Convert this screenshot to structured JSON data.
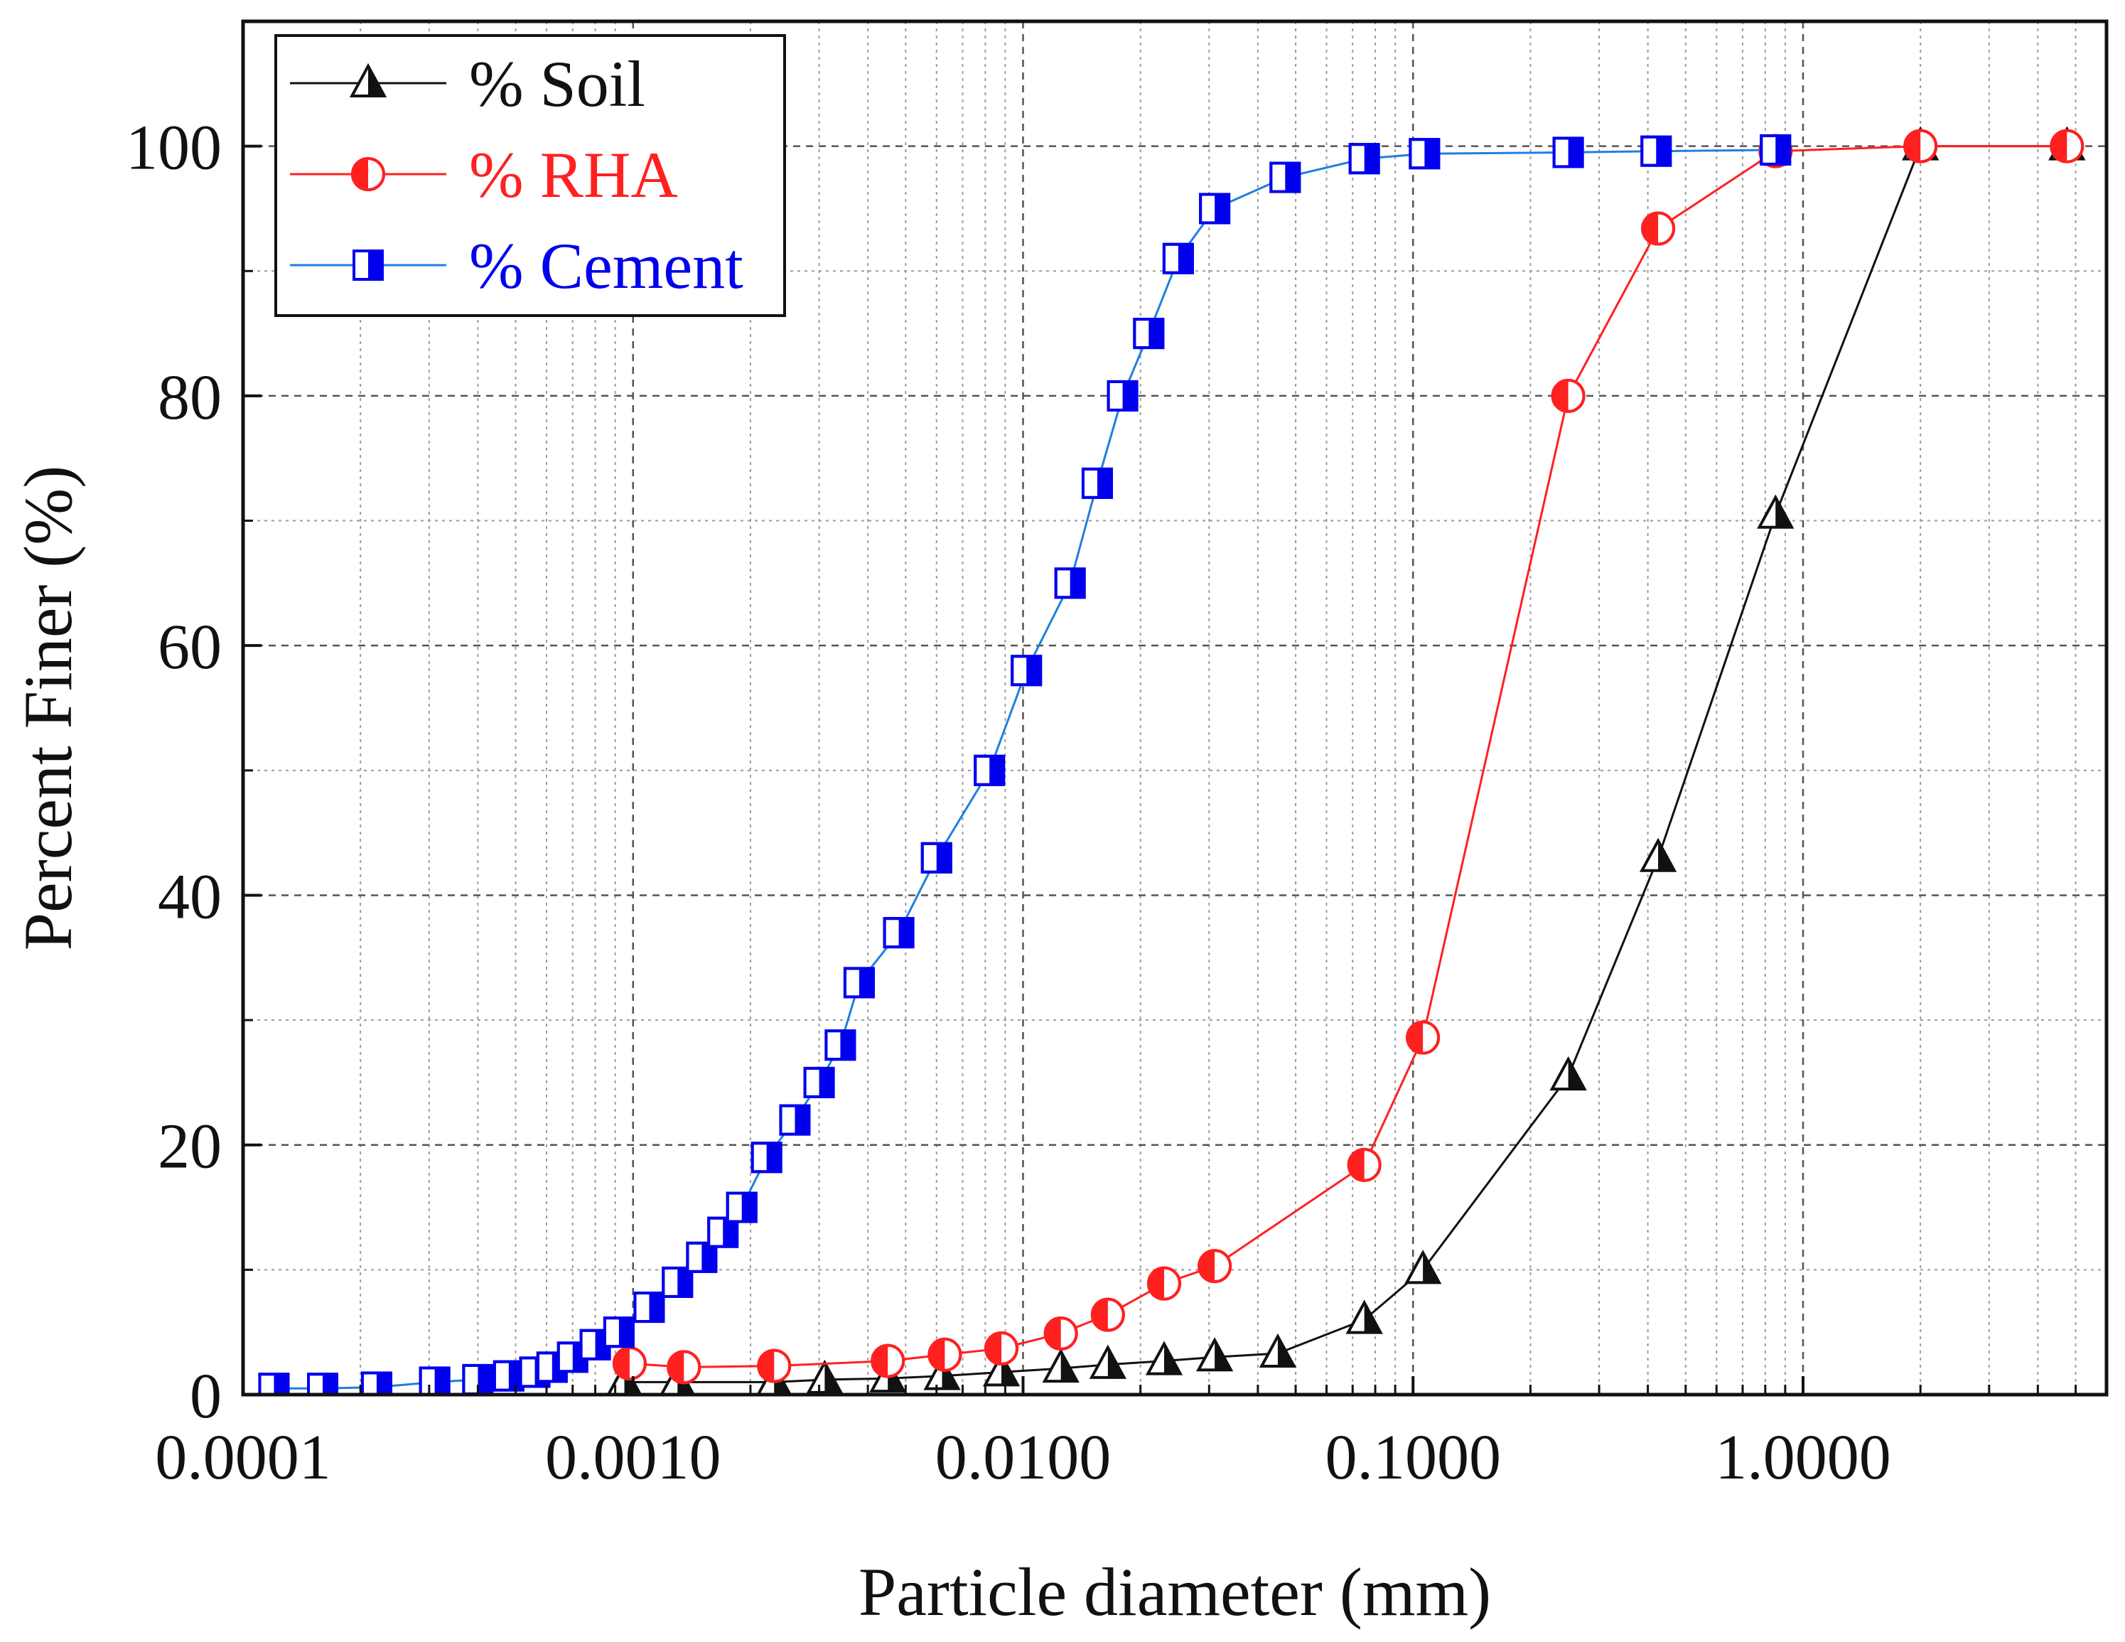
{
  "chart_data": {
    "type": "line",
    "title": "",
    "xlabel": "Particle diameter (mm)",
    "ylabel": "Percent Finer (%)",
    "xscale": "log",
    "xlim": [
      0.0001,
      6
    ],
    "ylim": [
      0,
      110
    ],
    "xticks": [
      0.0001,
      0.001,
      0.01,
      0.1,
      1
    ],
    "xtick_labels": [
      "0.0001",
      "0.0010",
      "0.0100",
      "0.1000",
      "1.0000"
    ],
    "yticks": [
      0,
      20,
      40,
      60,
      80,
      100
    ],
    "ytick_labels": [
      "0",
      "20",
      "40",
      "60",
      "80",
      "100"
    ],
    "grid": true,
    "legend_position": "top-left",
    "series": [
      {
        "name": "% Soil",
        "color": "#111111",
        "marker": "triangle",
        "x": [
          0.00095,
          0.0013,
          0.0023,
          0.0031,
          0.0045,
          0.0062,
          0.0088,
          0.0125,
          0.0165,
          0.023,
          0.031,
          0.045,
          0.075,
          0.106,
          0.25,
          0.425,
          0.85,
          2.0,
          4.75
        ],
        "y": [
          1,
          1,
          1,
          1.2,
          1.3,
          1.5,
          1.8,
          2.1,
          2.4,
          2.7,
          3.0,
          3.3,
          6,
          10,
          25.5,
          43,
          70.5,
          100,
          100
        ]
      },
      {
        "name": "% RHA",
        "color": "#ff2020",
        "marker": "half-circle",
        "x": [
          0.00098,
          0.00135,
          0.0023,
          0.0045,
          0.0063,
          0.0088,
          0.0125,
          0.0165,
          0.023,
          0.031,
          0.075,
          0.106,
          0.25,
          0.425,
          0.85,
          2.0,
          4.75
        ],
        "y": [
          2.5,
          2.2,
          2.3,
          2.7,
          3.2,
          3.7,
          4.9,
          6.4,
          8.9,
          10.3,
          18.4,
          28.6,
          80,
          93.4,
          99.6,
          100,
          100
        ]
      },
      {
        "name": "% Cement",
        "color": "#1f7fe0",
        "marker_color": "#0000ee",
        "marker": "half-square",
        "x": [
          0.00012,
          0.00016,
          0.00022,
          0.00031,
          0.0004,
          0.00048,
          0.00056,
          0.00062,
          0.0007,
          0.0008,
          0.00092,
          0.0011,
          0.0013,
          0.0015,
          0.0017,
          0.0019,
          0.0022,
          0.0026,
          0.003,
          0.0034,
          0.0038,
          0.0048,
          0.006,
          0.0082,
          0.0102,
          0.0132,
          0.0155,
          0.018,
          0.021,
          0.025,
          0.031,
          0.047,
          0.075,
          0.107,
          0.25,
          0.42,
          0.85
        ],
        "y": [
          0.5,
          0.5,
          0.6,
          1,
          1.2,
          1.5,
          1.8,
          2.2,
          3,
          4,
          5,
          7,
          9,
          11,
          13,
          15,
          19,
          22,
          25,
          28,
          33,
          37,
          43,
          50,
          58,
          65,
          73,
          80,
          85,
          91,
          95,
          97.5,
          99,
          99.4,
          99.5,
          99.6,
          99.7
        ]
      }
    ]
  }
}
